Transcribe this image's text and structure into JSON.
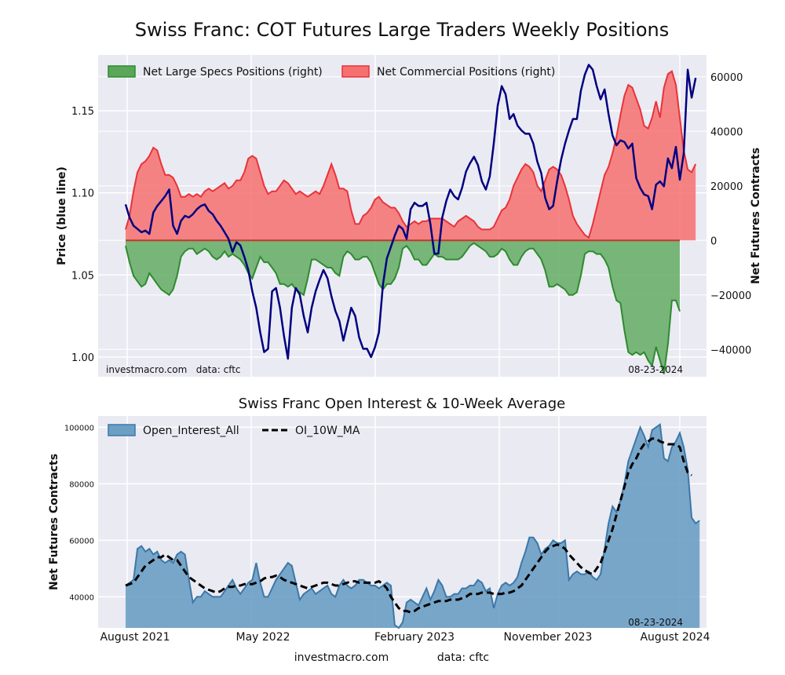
{
  "figure": {
    "title": "Swiss Franc: COT Futures Large Traders Weekly Positions",
    "footer_left": "investmacro.com",
    "footer_right": "data: cftc"
  },
  "colors": {
    "panel_bg": "#eaeaf2",
    "grid": "#ffffff",
    "price_line": "#000080",
    "specs_fill": "#5aa75a",
    "specs_line": "#2e8b2e",
    "comm_fill": "#f77070",
    "comm_line": "#e8333a",
    "oi_fill": "#6c9fc4",
    "oi_line": "#3b78a8",
    "ma_line": "#000000"
  },
  "chart_data": [
    {
      "type": "area",
      "title": "Swiss Franc: COT Futures Large Traders Weekly Positions",
      "ylabel": "Price (blue line)",
      "y2label": "Net Futures Contracts",
      "ylim": [
        0.988,
        1.184
      ],
      "y2lim": [
        -50000,
        68000
      ],
      "yticks": [
        "1.00",
        "1.05",
        "1.10",
        "1.15"
      ],
      "y2ticks": [
        "−40000",
        "−20000",
        "0",
        "20000",
        "40000",
        "60000"
      ],
      "grid": true,
      "legend_position": "top-left",
      "source_left": "investmacro.com   data: cftc",
      "date_stamp": "08-23-2024",
      "series": [
        {
          "name": "Net Large Specs Positions (right)",
          "axis": "right",
          "values": [
            -2000,
            -8000,
            -13000,
            -15000,
            -17000,
            -16000,
            -12000,
            -14000,
            -16000,
            -18000,
            -19000,
            -20000,
            -18000,
            -13000,
            -6000,
            -4000,
            -3000,
            -3000,
            -5000,
            -4000,
            -3000,
            -4000,
            -6000,
            -7000,
            -6000,
            -4000,
            -6000,
            -5000,
            -6000,
            -7000,
            -9000,
            -12000,
            -14000,
            -10000,
            -6000,
            -8000,
            -8000,
            -10000,
            -12000,
            -16000,
            -16000,
            -17000,
            -16000,
            -18000,
            -19000,
            -20000,
            -14000,
            -7000,
            -7000,
            -8000,
            -9000,
            -10000,
            -10000,
            -12000,
            -13000,
            -6000,
            -4000,
            -5000,
            -7000,
            -7000,
            -6000,
            -6000,
            -8000,
            -12000,
            -16000,
            -18000,
            -16000,
            -16000,
            -14000,
            -10000,
            -3000,
            -2000,
            -4000,
            -7000,
            -7000,
            -9000,
            -9000,
            -7000,
            -5000,
            -6000,
            -6000,
            -7000,
            -7000,
            -7000,
            -7000,
            -6000,
            -4000,
            -2000,
            -1000,
            -2000,
            -3000,
            -4000,
            -6000,
            -6000,
            -5000,
            -3000,
            -4000,
            -7000,
            -9000,
            -9000,
            -6000,
            -4000,
            -3000,
            -3000,
            -5000,
            -7000,
            -11000,
            -17000,
            -17000,
            -16000,
            -17000,
            -18000,
            -20000,
            -20000,
            -19000,
            -13000,
            -5000,
            -4000,
            -4000,
            -5000,
            -5000,
            -7000,
            -10000,
            -17000,
            -22000,
            -23000,
            -33000,
            -41000,
            -42000,
            -41000,
            -42000,
            -41000,
            -44000,
            -46000,
            -39000,
            -44000,
            -49000,
            -38000,
            -22000,
            -22000,
            -26000
          ]
        },
        {
          "name": "Net Commercial Positions (right)",
          "axis": "right",
          "values": [
            4000,
            9000,
            18000,
            25000,
            28000,
            29000,
            31000,
            34000,
            33000,
            28000,
            24000,
            24000,
            23000,
            20000,
            16000,
            16000,
            17000,
            16000,
            17000,
            16000,
            18000,
            19000,
            18000,
            19000,
            20000,
            21000,
            19000,
            20000,
            22000,
            22000,
            25000,
            30000,
            31000,
            30000,
            25000,
            20000,
            17000,
            18000,
            18000,
            20000,
            22000,
            21000,
            19000,
            17000,
            18000,
            17000,
            16000,
            17000,
            18000,
            17000,
            20000,
            24000,
            28000,
            24000,
            19000,
            19000,
            18000,
            11000,
            6000,
            6000,
            9000,
            10000,
            12000,
            15000,
            16000,
            14000,
            13000,
            12000,
            12000,
            10000,
            7000,
            5000,
            6000,
            7000,
            6000,
            7000,
            7000,
            8000,
            8000,
            8000,
            8000,
            7000,
            6000,
            5000,
            7000,
            8000,
            9000,
            8000,
            7000,
            5000,
            4000,
            4000,
            4000,
            5000,
            8000,
            11000,
            12000,
            15000,
            20000,
            23000,
            26000,
            28000,
            27000,
            25000,
            20000,
            18000,
            22000,
            26000,
            27000,
            26000,
            24000,
            20000,
            15000,
            9000,
            6000,
            4000,
            2000,
            1000,
            6000,
            12000,
            18000,
            24000,
            27000,
            32000,
            38000,
            46000,
            53000,
            57000,
            56000,
            52000,
            48000,
            42000,
            41000,
            45000,
            51000,
            45000,
            56000,
            61000,
            62000,
            57000,
            45000,
            33000,
            26000,
            25000,
            28000
          ]
        },
        {
          "name": "Price",
          "axis": "left",
          "line_only": true,
          "values": [
            1.093,
            1.085,
            1.08,
            1.078,
            1.076,
            1.077,
            1.075,
            1.088,
            1.092,
            1.095,
            1.098,
            1.102,
            1.08,
            1.075,
            1.083,
            1.086,
            1.085,
            1.087,
            1.09,
            1.092,
            1.093,
            1.089,
            1.087,
            1.083,
            1.08,
            1.076,
            1.072,
            1.064,
            1.07,
            1.068,
            1.061,
            1.053,
            1.04,
            1.03,
            1.015,
            1.003,
            1.005,
            1.04,
            1.042,
            1.03,
            1.013,
            0.999,
            1.03,
            1.042,
            1.038,
            1.025,
            1.015,
            1.03,
            1.04,
            1.047,
            1.053,
            1.048,
            1.037,
            1.028,
            1.022,
            1.01,
            1.02,
            1.03,
            1.025,
            1.012,
            1.005,
            1.005,
            1.0,
            1.006,
            1.015,
            1.044,
            1.06,
            1.067,
            1.074,
            1.08,
            1.078,
            1.072,
            1.09,
            1.094,
            1.092,
            1.092,
            1.094,
            1.081,
            1.063,
            1.063,
            1.085,
            1.095,
            1.102,
            1.098,
            1.096,
            1.103,
            1.113,
            1.118,
            1.122,
            1.117,
            1.107,
            1.102,
            1.11,
            1.13,
            1.153,
            1.165,
            1.16,
            1.145,
            1.148,
            1.141,
            1.138,
            1.136,
            1.136,
            1.13,
            1.119,
            1.112,
            1.097,
            1.09,
            1.092,
            1.107,
            1.12,
            1.13,
            1.138,
            1.145,
            1.145,
            1.162,
            1.172,
            1.178,
            1.175,
            1.165,
            1.157,
            1.163,
            1.148,
            1.135,
            1.129,
            1.132,
            1.131,
            1.127,
            1.13,
            1.109,
            1.103,
            1.099,
            1.098,
            1.09,
            1.105,
            1.107,
            1.104,
            1.121,
            1.115,
            1.128,
            1.108,
            1.124,
            1.175,
            1.158,
            1.17
          ]
        }
      ]
    },
    {
      "type": "area",
      "title": "Swiss Franc Open Interest & 10-Week Average",
      "ylabel": "Net Futures Contracts",
      "ylim": [
        29000,
        104000
      ],
      "yticks": [
        "40000",
        "60000",
        "80000",
        "100000"
      ],
      "grid": true,
      "legend_position": "top-left",
      "date_stamp": "08-23-2024",
      "x_ticks": [
        "August 2021",
        "May 2022",
        "February 2023",
        "November 2023",
        "August 2024"
      ],
      "series": [
        {
          "name": "Open_Interest_All",
          "values": [
            44000,
            45000,
            46000,
            57000,
            58000,
            56000,
            57000,
            55000,
            56000,
            53000,
            52000,
            53000,
            52000,
            55000,
            56000,
            55000,
            46000,
            38000,
            40000,
            40000,
            42000,
            41000,
            40000,
            40000,
            40000,
            42000,
            44000,
            46000,
            43000,
            41000,
            43000,
            45000,
            46000,
            52000,
            45000,
            40000,
            40000,
            43000,
            46000,
            48000,
            50000,
            52000,
            51000,
            45000,
            39000,
            41000,
            42000,
            43000,
            41000,
            42000,
            43000,
            44000,
            41000,
            40000,
            44000,
            46000,
            44000,
            43000,
            44000,
            46000,
            46000,
            45000,
            44000,
            44000,
            43000,
            44000,
            45000,
            44000,
            30000,
            29000,
            31000,
            38000,
            39000,
            38000,
            37000,
            40000,
            43000,
            39000,
            42000,
            46000,
            44000,
            40000,
            40000,
            41000,
            41000,
            43000,
            43000,
            44000,
            44000,
            46000,
            45000,
            42000,
            43000,
            36000,
            41000,
            44000,
            45000,
            44000,
            45000,
            47000,
            52000,
            56000,
            61000,
            61000,
            59000,
            55000,
            57000,
            58000,
            60000,
            59000,
            59000,
            60000,
            46000,
            48000,
            49000,
            48000,
            48000,
            49000,
            47000,
            46000,
            48000,
            57000,
            66000,
            72000,
            70000,
            74000,
            80000,
            88000,
            92000,
            96000,
            100000,
            97000,
            93000,
            99000,
            100000,
            101000,
            89000,
            88000,
            93000,
            95000,
            98000,
            93000,
            85000,
            68000,
            66000,
            67000
          ]
        },
        {
          "name": "OI_10W_MA",
          "values": [
            44000,
            44500,
            45000,
            47000,
            49000,
            51000,
            52000,
            53000,
            54000,
            54000,
            55000,
            54000,
            53000,
            53000,
            51000,
            49000,
            47000,
            46000,
            45000,
            44000,
            43000,
            42500,
            42000,
            41500,
            42000,
            43000,
            43500,
            43500,
            44000,
            44000,
            44500,
            44500,
            44500,
            45000,
            45500,
            46500,
            47000,
            47000,
            47500,
            47000,
            46000,
            45500,
            45000,
            44500,
            44000,
            43500,
            43000,
            43500,
            44000,
            44500,
            45000,
            45000,
            44500,
            44000,
            44000,
            44500,
            45000,
            45500,
            45500,
            45000,
            45000,
            45000,
            45000,
            45000,
            45500,
            44500,
            43000,
            40000,
            38000,
            36000,
            35000,
            35000,
            34500,
            35000,
            36000,
            36500,
            37000,
            37500,
            38000,
            38500,
            38500,
            38500,
            39000,
            39000,
            39000,
            39500,
            40000,
            41000,
            41000,
            41000,
            41500,
            41500,
            41500,
            41000,
            41000,
            41000,
            41500,
            41500,
            42000,
            43000,
            44000,
            46000,
            48000,
            50000,
            52000,
            54000,
            56000,
            57500,
            58000,
            58500,
            58000,
            57000,
            55000,
            53500,
            52000,
            50500,
            49500,
            48500,
            48000,
            50000,
            52000,
            56000,
            60000,
            64000,
            69000,
            74000,
            79000,
            84000,
            87000,
            89000,
            92000,
            94000,
            95000,
            96000,
            96000,
            95000,
            94500,
            94000,
            94000,
            94000,
            93000,
            88000,
            84000,
            83000
          ]
        }
      ]
    }
  ]
}
